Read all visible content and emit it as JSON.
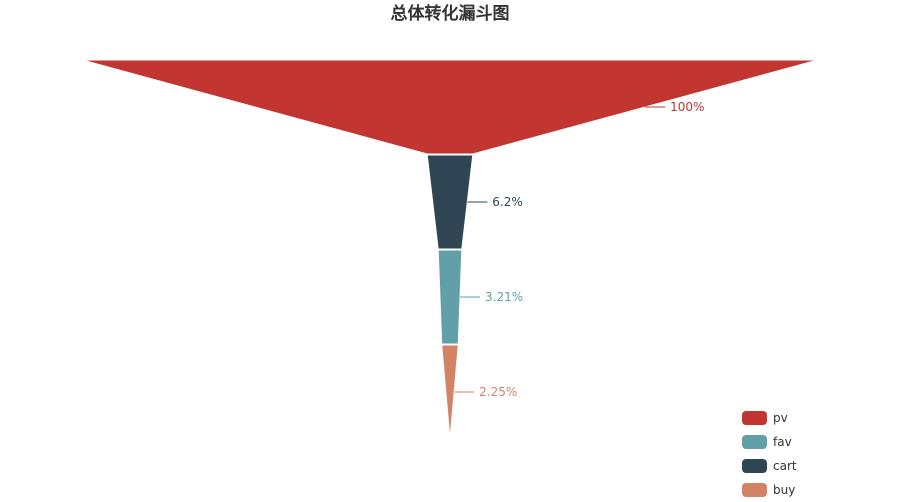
{
  "chart_data": {
    "type": "funnel",
    "title": "总体转化漏斗图",
    "categories": [
      "pv",
      "cart",
      "fav",
      "buy"
    ],
    "values": [
      100,
      6.2,
      3.21,
      2.25
    ],
    "value_labels": [
      "100%",
      "6.2%",
      "3.21%",
      "2.25%"
    ],
    "unit": "%",
    "colors": {
      "pv": "#c23531",
      "cart": "#2f4554",
      "fav": "#61a0a8",
      "buy": "#d48265"
    },
    "legend": {
      "placement": "bottom-right",
      "order": [
        "pv",
        "fav",
        "cart",
        "buy"
      ]
    }
  }
}
